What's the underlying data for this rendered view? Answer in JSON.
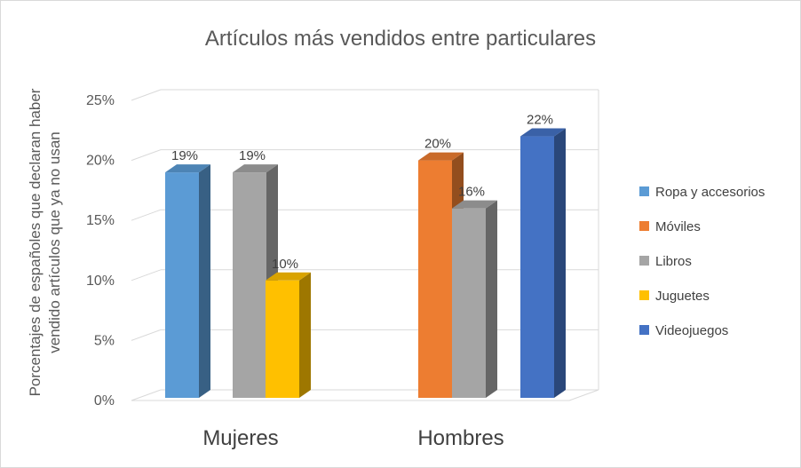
{
  "chart_data": {
    "type": "bar",
    "title": "Artículos más vendidos entre particulares",
    "ylabel_lines": [
      "Porcentajes de españoles que declaran haber",
      "vendido artículos que ya no usan"
    ],
    "xlabel": "",
    "categories": [
      "Mujeres",
      "Hombres"
    ],
    "ylim": [
      0,
      25
    ],
    "yticks": [
      "0%",
      "5%",
      "10%",
      "15%",
      "20%",
      "25%"
    ],
    "grid": true,
    "legend_position": "right",
    "series": [
      {
        "name": "Ropa y accesorios",
        "color": "#5b9bd5",
        "values": [
          19,
          null
        ],
        "labels": [
          "19%",
          ""
        ]
      },
      {
        "name": "Móviles",
        "color": "#ed7d31",
        "values": [
          null,
          20
        ],
        "labels": [
          "",
          "20%"
        ]
      },
      {
        "name": "Libros",
        "color": "#a5a5a5",
        "values": [
          19,
          16
        ],
        "labels": [
          "19%",
          "16%"
        ]
      },
      {
        "name": "Juguetes",
        "color": "#ffc000",
        "values": [
          10,
          null
        ],
        "labels": [
          "10%",
          ""
        ]
      },
      {
        "name": "Videojuegos",
        "color": "#4472c4",
        "values": [
          null,
          22
        ],
        "labels": [
          "",
          "22%"
        ]
      }
    ]
  }
}
